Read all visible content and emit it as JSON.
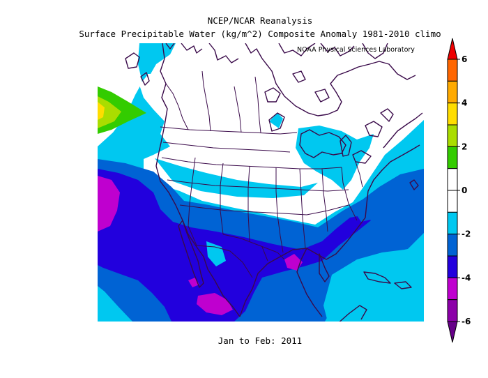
{
  "title_line1": "NCEP/NCAR Reanalysis",
  "title_line2": "Surface Precipitable Water (kg/m^2) Composite Anomaly 1981-2010 climo",
  "credit": "NOAA Physical Sciences Laboratory",
  "footer": "Jan to Feb: 2011",
  "colorbar": {
    "levels": [
      {
        "range": "< -6",
        "color": "#660088"
      },
      {
        "range": "-6 to -5",
        "color": "#8c00a8"
      },
      {
        "range": "-5 to -4",
        "color": "#bf00cf"
      },
      {
        "range": "-4 to -3",
        "color": "#2200dd"
      },
      {
        "range": "-3 to -2",
        "color": "#0063d4"
      },
      {
        "range": "-2 to -1",
        "color": "#00c8f0"
      },
      {
        "range": "-1 to 0",
        "color": "#ffffff"
      },
      {
        "range": "0 to 1",
        "color": "#ffffff"
      },
      {
        "range": "1 to 2",
        "color": "#33cc00"
      },
      {
        "range": "2 to 3",
        "color": "#aadd00"
      },
      {
        "range": "3 to 4",
        "color": "#ffdd00"
      },
      {
        "range": "4 to 5",
        "color": "#ffaa00"
      },
      {
        "range": "5 to 6",
        "color": "#ff6600"
      },
      {
        "range": "> 6",
        "color": "#ee0000"
      }
    ],
    "tick_labels": [
      "6",
      "4",
      "2",
      "0",
      "-2",
      "-4",
      "-6"
    ]
  },
  "map_colors": {
    "background": "#ffffff",
    "anom_minus1": "#00c8f0",
    "anom_minus2": "#0063d4",
    "anom_minus3": "#2200dd",
    "anom_minus4": "#bf00cf",
    "anom_minus5": "#8c00a8",
    "anom_plus1": "#33cc00",
    "anom_plus2": "#aadd00",
    "anom_plus3": "#ffdd00",
    "coastline": "#3a0a4a"
  }
}
